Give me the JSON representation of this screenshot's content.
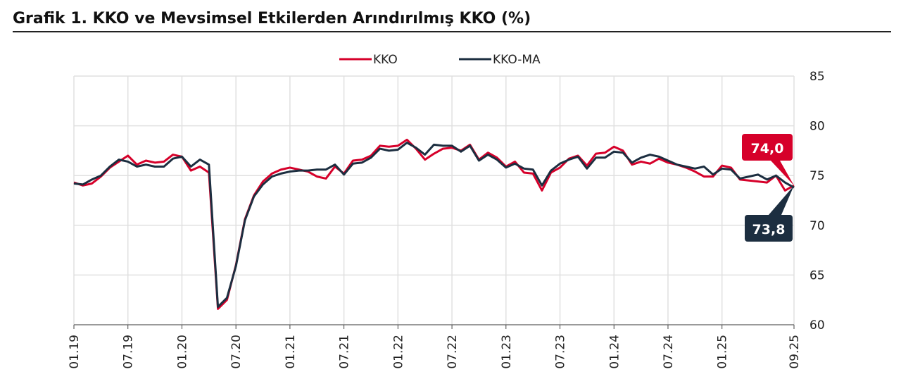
{
  "chart_data": {
    "type": "line",
    "title": "Grafik 1. KKO ve Mevsimsel Etkilerden Arındırılmış KKO (%)",
    "xlabel": "",
    "ylabel": "",
    "ylim": [
      60,
      85
    ],
    "yticks": [
      "60",
      "65",
      "70",
      "75",
      "80",
      "85"
    ],
    "xticks": [
      "01.19",
      "07.19",
      "01.20",
      "07.20",
      "01.21",
      "07.21",
      "01.22",
      "07.22",
      "01.23",
      "07.23",
      "01.24",
      "07.24",
      "01.25",
      "09.25"
    ],
    "legend_position": "top-center",
    "grid": true,
    "series": [
      {
        "name": "KKO",
        "color": "#d6002a",
        "values": [
          74.3,
          74.0,
          74.2,
          74.9,
          75.8,
          76.4,
          77.0,
          76.1,
          76.5,
          76.3,
          76.4,
          77.1,
          76.9,
          75.5,
          75.9,
          75.3,
          61.6,
          62.5,
          66.0,
          70.6,
          73.0,
          74.4,
          75.2,
          75.6,
          75.8,
          75.6,
          75.4,
          74.9,
          74.7,
          75.9,
          75.2,
          76.5,
          76.6,
          77.0,
          78.0,
          77.9,
          78.0,
          78.6,
          77.7,
          76.6,
          77.2,
          77.7,
          77.8,
          77.5,
          78.1,
          76.6,
          77.3,
          76.8,
          75.9,
          76.4,
          75.3,
          75.2,
          73.5,
          75.3,
          75.8,
          76.7,
          77.0,
          76.0,
          77.2,
          77.3,
          77.9,
          77.5,
          76.1,
          76.4,
          76.2,
          76.7,
          76.3,
          76.1,
          75.8,
          75.4,
          74.9,
          74.9,
          76.0,
          75.8,
          74.6,
          74.5,
          74.4,
          74.3,
          75.0,
          73.5,
          74.0
        ],
        "last_label": "74,0"
      },
      {
        "name": "KKO-MA",
        "color": "#1c2e40",
        "values": [
          74.2,
          74.1,
          74.6,
          75.0,
          75.9,
          76.6,
          76.4,
          75.9,
          76.1,
          75.9,
          75.9,
          76.7,
          76.9,
          75.9,
          76.6,
          76.1,
          61.8,
          62.7,
          65.9,
          70.5,
          72.9,
          74.1,
          74.9,
          75.2,
          75.4,
          75.5,
          75.5,
          75.6,
          75.6,
          76.1,
          75.1,
          76.2,
          76.3,
          76.8,
          77.7,
          77.5,
          77.6,
          78.3,
          77.8,
          77.1,
          78.1,
          78.0,
          78.0,
          77.4,
          78.0,
          76.5,
          77.1,
          76.6,
          75.8,
          76.2,
          75.7,
          75.6,
          74.0,
          75.5,
          76.2,
          76.6,
          76.9,
          75.7,
          76.8,
          76.8,
          77.4,
          77.3,
          76.3,
          76.8,
          77.1,
          76.9,
          76.5,
          76.1,
          75.9,
          75.7,
          75.9,
          75.1,
          75.7,
          75.6,
          74.7,
          74.9,
          75.1,
          74.6,
          75.0,
          74.3,
          73.8
        ],
        "last_label": "73,8"
      }
    ]
  }
}
